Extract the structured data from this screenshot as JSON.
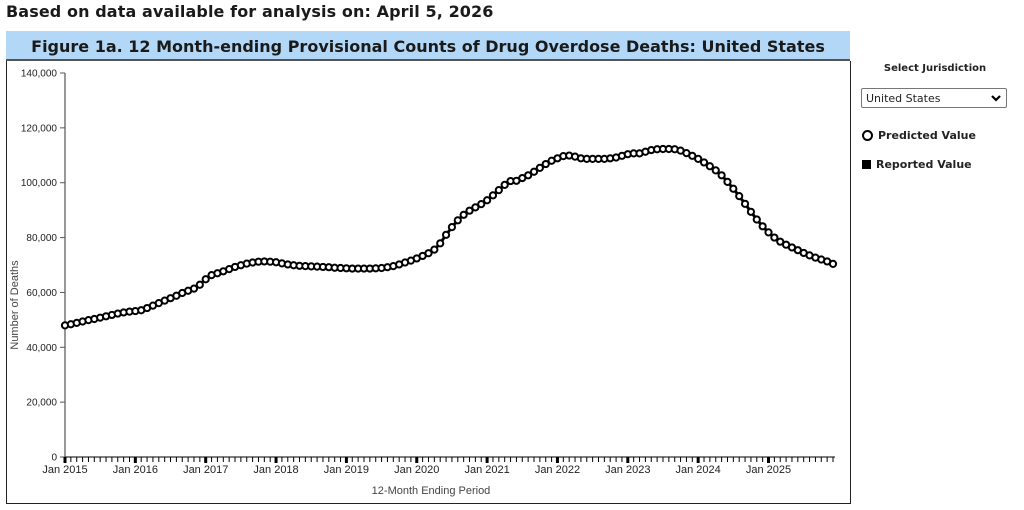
{
  "page": {
    "as_of_text": "Based on data available for analysis on: April 5, 2026"
  },
  "sidebar": {
    "select_label": "Select Jurisdiction",
    "select_value": "United States",
    "legend": [
      {
        "label": "Predicted Value",
        "icon": "open-circle-icon"
      },
      {
        "label": "Reported Value",
        "icon": "filled-square-icon"
      }
    ]
  },
  "chart_data": {
    "type": "line",
    "title": "Figure 1a. 12 Month-ending Provisional Counts of Drug Overdose Deaths: United States",
    "xlabel": "12-Month Ending Period",
    "ylabel": "Number of Deaths",
    "ylim": [
      0,
      140000
    ],
    "yticks": [
      0,
      20000,
      40000,
      60000,
      80000,
      100000,
      120000,
      140000
    ],
    "ytick_labels": [
      "0",
      "20,000",
      "40,000",
      "60,000",
      "80,000",
      "100,000",
      "120,000",
      "140,000"
    ],
    "x_start": "Jan 2015",
    "x_end": "Nov 2025",
    "xtick_labels": [
      "Jan 2015",
      "Jan 2016",
      "Jan 2017",
      "Jan 2018",
      "Jan 2019",
      "Jan 2020",
      "Jan 2021",
      "Jan 2022",
      "Jan 2023",
      "Jan 2024",
      "Jan 2025"
    ],
    "grid": false,
    "legend_position": "right",
    "series": [
      {
        "name": "Predicted Value",
        "marker": "open-circle",
        "start": "Jan 2015",
        "frequency": "monthly",
        "values": [
          48000,
          48400,
          48900,
          49400,
          49900,
          50300,
          50800,
          51300,
          51800,
          52300,
          52700,
          53000,
          53200,
          53500,
          54300,
          55200,
          56100,
          57000,
          57900,
          58800,
          59800,
          60600,
          61400,
          62800,
          64800,
          66300,
          67000,
          67700,
          68500,
          69300,
          69900,
          70500,
          70900,
          71200,
          71300,
          71200,
          71000,
          70600,
          70200,
          69900,
          69700,
          69600,
          69500,
          69400,
          69300,
          69200,
          69000,
          68900,
          68800,
          68700,
          68700,
          68700,
          68700,
          68800,
          68900,
          69200,
          69600,
          70200,
          70900,
          71600,
          72400,
          73300,
          74300,
          75600,
          77900,
          81000,
          83800,
          86300,
          88300,
          89800,
          91000,
          92200,
          93600,
          95400,
          97300,
          99200,
          100600,
          100700,
          101700,
          102700,
          104000,
          105400,
          106800,
          108000,
          108900,
          109700,
          109900,
          109500,
          108900,
          108700,
          108700,
          108700,
          108700,
          108900,
          109200,
          109800,
          110400,
          110700,
          110700,
          111300,
          111900,
          112200,
          112300,
          112300,
          112200,
          111700,
          110800,
          109800,
          108700,
          107400,
          106000,
          104500,
          102700,
          100300,
          97800,
          95100,
          92300,
          89400,
          86600,
          84100,
          81900,
          80000,
          78500,
          77400,
          76400,
          75400,
          74400,
          73500,
          72700,
          72000,
          71300,
          70400
        ]
      }
    ]
  }
}
